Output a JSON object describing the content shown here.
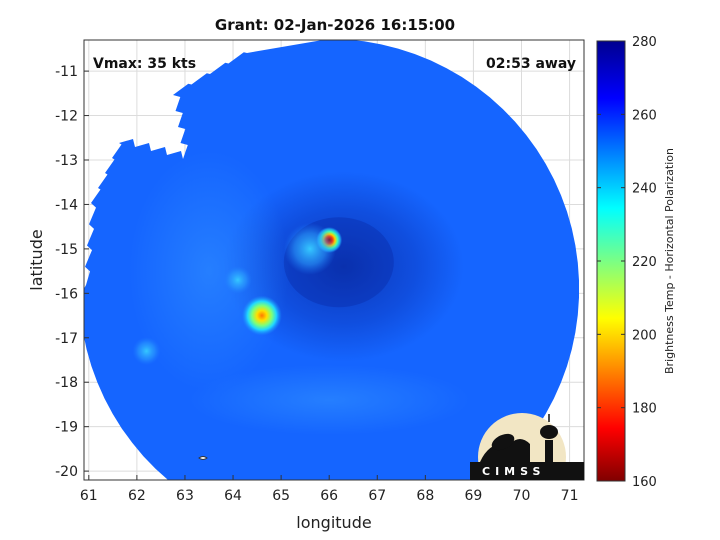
{
  "chart_data": {
    "type": "heatmap",
    "title": "Grant: 02-Jan-2026 16:15:00",
    "xlabel": "longitude",
    "ylabel": "latitude",
    "xlim": [
      60.9,
      71.3
    ],
    "ylim": [
      -20.2,
      -10.3
    ],
    "x_ticks": [
      "61",
      "62",
      "63",
      "64",
      "65",
      "66",
      "67",
      "68",
      "69",
      "70",
      "71"
    ],
    "y_ticks": [
      "-11",
      "-12",
      "-13",
      "-14",
      "-15",
      "-16",
      "-17",
      "-18",
      "-19",
      "-20"
    ],
    "grid": true,
    "annotations": {
      "vmax": "Vmax: 35 kts",
      "time_away": "02:53 away"
    },
    "colorbar": {
      "label": "Brightness Temp - Horizontal Polarization",
      "range": [
        160,
        280
      ],
      "ticks": [
        "280",
        "260",
        "240",
        "220",
        "200",
        "180",
        "160"
      ],
      "colormap": "jet"
    },
    "swath": {
      "center_lon": 66.0,
      "center_lat": -15.9,
      "background_value": 262
    },
    "features": [
      {
        "lon": 66.0,
        "lat": -14.8,
        "min_value": 190,
        "desc": "cold core"
      },
      {
        "lon": 64.6,
        "lat": -16.5,
        "min_value": 212,
        "desc": "cold spot"
      },
      {
        "lon": 65.6,
        "lat": -15.0,
        "min_value": 240,
        "desc": "cyan patch"
      },
      {
        "lon": 64.1,
        "lat": -15.7,
        "min_value": 245,
        "desc": "cyan patch"
      },
      {
        "lon": 62.2,
        "lat": -17.3,
        "min_value": 248,
        "desc": "small patch"
      },
      {
        "lon": 66.0,
        "lat": -15.3,
        "min_value": 272,
        "desc": "dark eye region"
      }
    ],
    "logo": "CIMSS"
  }
}
